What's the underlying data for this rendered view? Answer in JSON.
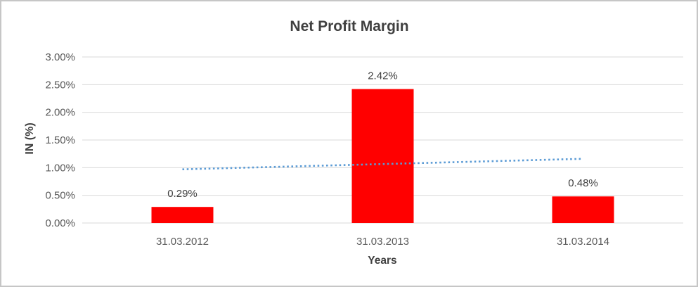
{
  "window": {
    "background_color": "#ffffff",
    "border_color": "#c6c6c6"
  },
  "chart_data": {
    "type": "bar",
    "title": "Net Profit Margin",
    "xlabel": "Years",
    "ylabel": "IN (%)",
    "categories": [
      "31.03.2012",
      "31.03.2013",
      "31.03.2014"
    ],
    "series": [
      {
        "name": "Net Profit Margin",
        "values": [
          0.29,
          2.42,
          0.48
        ],
        "color": "#FF0000"
      }
    ],
    "data_labels": [
      "0.29%",
      "2.42%",
      "0.48%"
    ],
    "ylim": [
      0,
      3.0
    ],
    "ytick_step": 0.5,
    "ytick_labels": [
      "0.00%",
      "0.50%",
      "1.00%",
      "1.50%",
      "2.00%",
      "2.50%",
      "3.00%"
    ],
    "grid": true,
    "gridline_color": "#D9D9D9",
    "legend_position": "none",
    "trendline": {
      "type": "linear",
      "style": "dotted",
      "color": "#5B9BD5",
      "start_value": 0.97,
      "end_value": 1.16
    },
    "title_color": "#404040",
    "axis_text_color": "#595959",
    "data_label_color": "#404040"
  }
}
